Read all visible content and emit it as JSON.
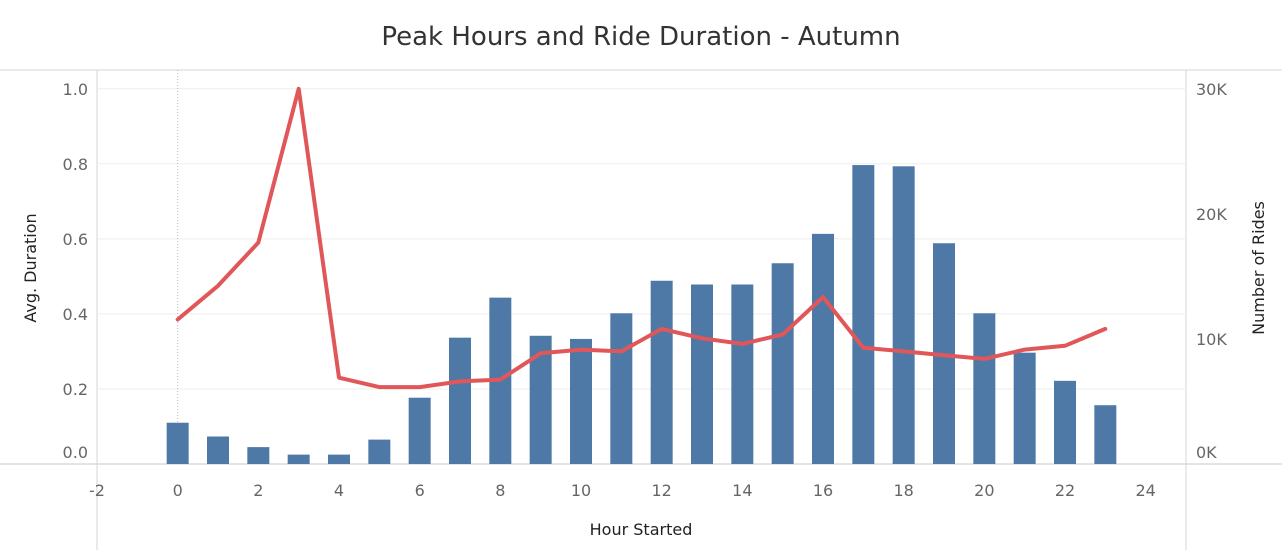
{
  "chart_data": {
    "type": "bar",
    "title": "Peak Hours and Ride Duration - Autumn",
    "xlabel": "Hour Started",
    "ylabel_left": "Avg. Duration",
    "ylabel_right": "Number of Rides",
    "xlim": [
      -2,
      25
    ],
    "x_ticks": [
      -2,
      0,
      2,
      4,
      6,
      8,
      10,
      12,
      14,
      16,
      18,
      20,
      22,
      24
    ],
    "x_tick_labels": [
      "-2",
      "0",
      "2",
      "4",
      "6",
      "8",
      "10",
      "12",
      "14",
      "16",
      "18",
      "20",
      "22",
      "24"
    ],
    "ylim_left": [
      0,
      1.05
    ],
    "y_left_ticks": [
      0,
      0.2,
      0.4,
      0.6,
      0.8,
      1.0
    ],
    "y_left_tick_labels": [
      "0.0",
      "0.2",
      "0.4",
      "0.6",
      "0.8",
      "1.0"
    ],
    "ylim_right": [
      0,
      31500
    ],
    "y_right_ticks": [
      0,
      10000,
      20000,
      30000
    ],
    "y_right_tick_labels": [
      "0K",
      "10K",
      "20K",
      "30K"
    ],
    "grid": true,
    "x": [
      0,
      1,
      2,
      3,
      4,
      5,
      6,
      7,
      8,
      9,
      10,
      11,
      12,
      13,
      14,
      15,
      16,
      17,
      18,
      19,
      20,
      21,
      22,
      23
    ],
    "series": [
      {
        "name": "Number of Rides",
        "type": "bar",
        "axis": "right",
        "color": "#4e79a7",
        "values": [
          3300,
          2200,
          1350,
          750,
          750,
          1950,
          5300,
          10100,
          13300,
          10250,
          10000,
          12050,
          14650,
          14350,
          14350,
          16050,
          18400,
          23900,
          23800,
          17650,
          12050,
          8900,
          6650,
          4700
        ]
      },
      {
        "name": "Avg. Duration",
        "type": "line",
        "axis": "left",
        "color": "#e15759",
        "values": [
          0.385,
          0.475,
          0.59,
          1.0,
          0.23,
          0.205,
          0.205,
          0.22,
          0.225,
          0.295,
          0.305,
          0.3,
          0.36,
          0.335,
          0.32,
          0.345,
          0.445,
          0.31,
          0.3,
          0.29,
          0.28,
          0.305,
          0.315,
          0.36
        ]
      }
    ]
  }
}
